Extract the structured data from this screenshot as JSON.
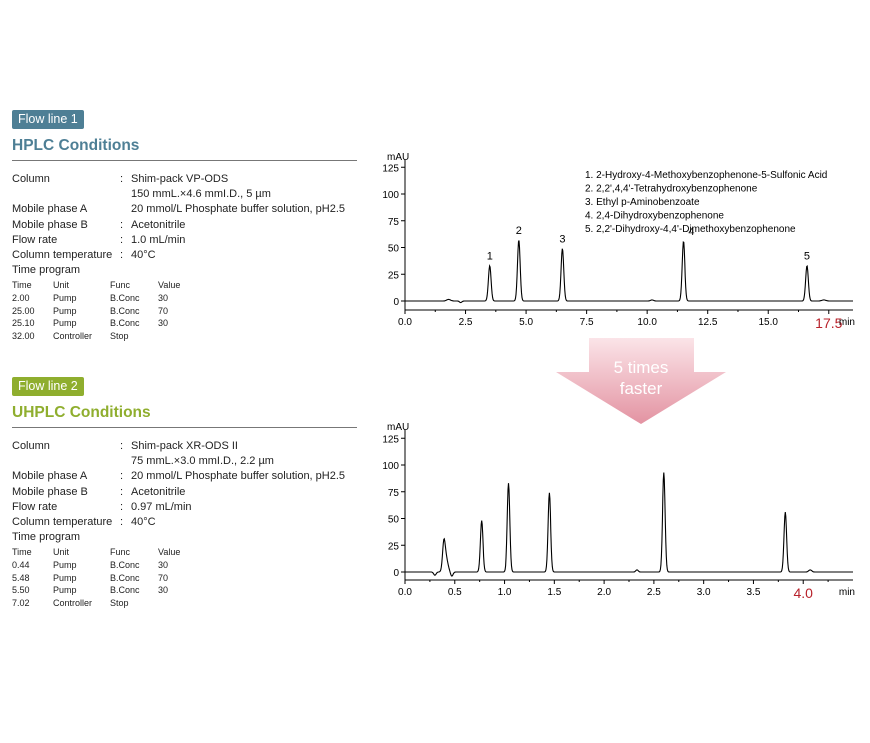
{
  "hplc": {
    "badge": "Flow line 1",
    "title": "HPLC Conditions",
    "conditions": [
      {
        "label": "Column",
        "sep": ":",
        "value": "Shim-pack VP-ODS",
        "value2": "150 mmL.×4.6 mmI.D., 5 µm"
      },
      {
        "label": "Mobile phase A",
        "sep": "",
        "value": "20 mmol/L Phosphate buffer solution, pH2.5"
      },
      {
        "label": "Mobile phase B",
        "sep": ":",
        "value": "Acetonitrile"
      },
      {
        "label": "Flow rate",
        "sep": ":",
        "value": "1.0 mL/min"
      },
      {
        "label": "Column temperature",
        "sep": ":",
        "value": "40°C"
      }
    ],
    "time_program": {
      "label": "Time program",
      "headers": [
        "Time",
        "Unit",
        "Func",
        "Value"
      ],
      "rows": [
        [
          "2.00",
          "Pump",
          "B.Conc",
          "30"
        ],
        [
          "25.00",
          "Pump",
          "B.Conc",
          "70"
        ],
        [
          "25.10",
          "Pump",
          "B.Conc",
          "30"
        ],
        [
          "32.00",
          "Controller",
          "Stop",
          ""
        ]
      ]
    }
  },
  "uhplc": {
    "badge": "Flow line 2",
    "title": "UHPLC Conditions",
    "conditions": [
      {
        "label": "Column",
        "sep": ":",
        "value": "Shim-pack XR-ODS II",
        "value2": "75 mmL.×3.0 mmI.D., 2.2 µm"
      },
      {
        "label": "Mobile phase A",
        "sep": ":",
        "value": "20 mmol/L Phosphate buffer solution, pH2.5"
      },
      {
        "label": "Mobile phase B",
        "sep": ":",
        "value": "Acetonitrile"
      },
      {
        "label": "Flow rate",
        "sep": ":",
        "value": "0.97 mL/min"
      },
      {
        "label": "Column temperature",
        "sep": ":",
        "value": "40°C"
      }
    ],
    "time_program": {
      "label": "Time program",
      "headers": [
        "Time",
        "Unit",
        "Func",
        "Value"
      ],
      "rows": [
        [
          "0.44",
          "Pump",
          "B.Conc",
          "30"
        ],
        [
          "5.48",
          "Pump",
          "B.Conc",
          "70"
        ],
        [
          "5.50",
          "Pump",
          "B.Conc",
          "30"
        ],
        [
          "7.02",
          "Controller",
          "Stop",
          ""
        ]
      ]
    }
  },
  "arrow": {
    "line1": "5 times",
    "line2": "faster"
  },
  "colors": {
    "hplc": "#4e7f95",
    "uhplc": "#8fae2e",
    "highlight": "#b8222b",
    "trace": "#000000",
    "arrow": "#e8a9b4"
  },
  "chart_data": [
    {
      "type": "line",
      "ylabel": "mAU",
      "xlabel": "min",
      "xlim": [
        0,
        18.5
      ],
      "ylim": [
        -8,
        125
      ],
      "yticks": [
        0,
        25,
        50,
        75,
        100,
        125
      ],
      "xticks": [
        "0.0",
        "2.5",
        "5.0",
        "7.5",
        "10.0",
        "12.5",
        "15.0"
      ],
      "end_label": "17.5",
      "peaks": [
        {
          "label": "1",
          "x": 3.5,
          "y": 33
        },
        {
          "label": "2",
          "x": 4.7,
          "y": 57
        },
        {
          "label": "3",
          "x": 6.5,
          "y": 49
        },
        {
          "label": "4",
          "x": 11.5,
          "y": 56
        },
        {
          "label": "5",
          "x": 16.6,
          "y": 33
        }
      ],
      "legend": [
        "1. 2-Hydroxy-4-Methoxybenzophenone-5-Sulfonic Acid",
        "2. 2,2',4,4'-Tetrahydroxybenzophenone",
        "3. Ethyl p-Aminobenzoate",
        "4. 2,4-Dihydroxybenzophenone",
        "5. 2,2'-Dihydroxy-4,4'-Dimethoxybenzophenone"
      ]
    },
    {
      "type": "line",
      "ylabel": "mAU",
      "xlabel": "min",
      "xlim": [
        0,
        4.5
      ],
      "ylim": [
        -8,
        125
      ],
      "yticks": [
        0,
        25,
        50,
        75,
        100,
        125
      ],
      "xticks": [
        "0.0",
        "0.5",
        "1.0",
        "1.5",
        "2.0",
        "2.5",
        "3.0",
        "3.5"
      ],
      "end_label": "4.0",
      "peaks": [
        {
          "x": 0.39,
          "y": 22
        },
        {
          "x": 0.77,
          "y": 48
        },
        {
          "x": 1.04,
          "y": 83
        },
        {
          "x": 1.45,
          "y": 74
        },
        {
          "x": 2.6,
          "y": 93
        },
        {
          "x": 3.82,
          "y": 56
        }
      ]
    }
  ]
}
